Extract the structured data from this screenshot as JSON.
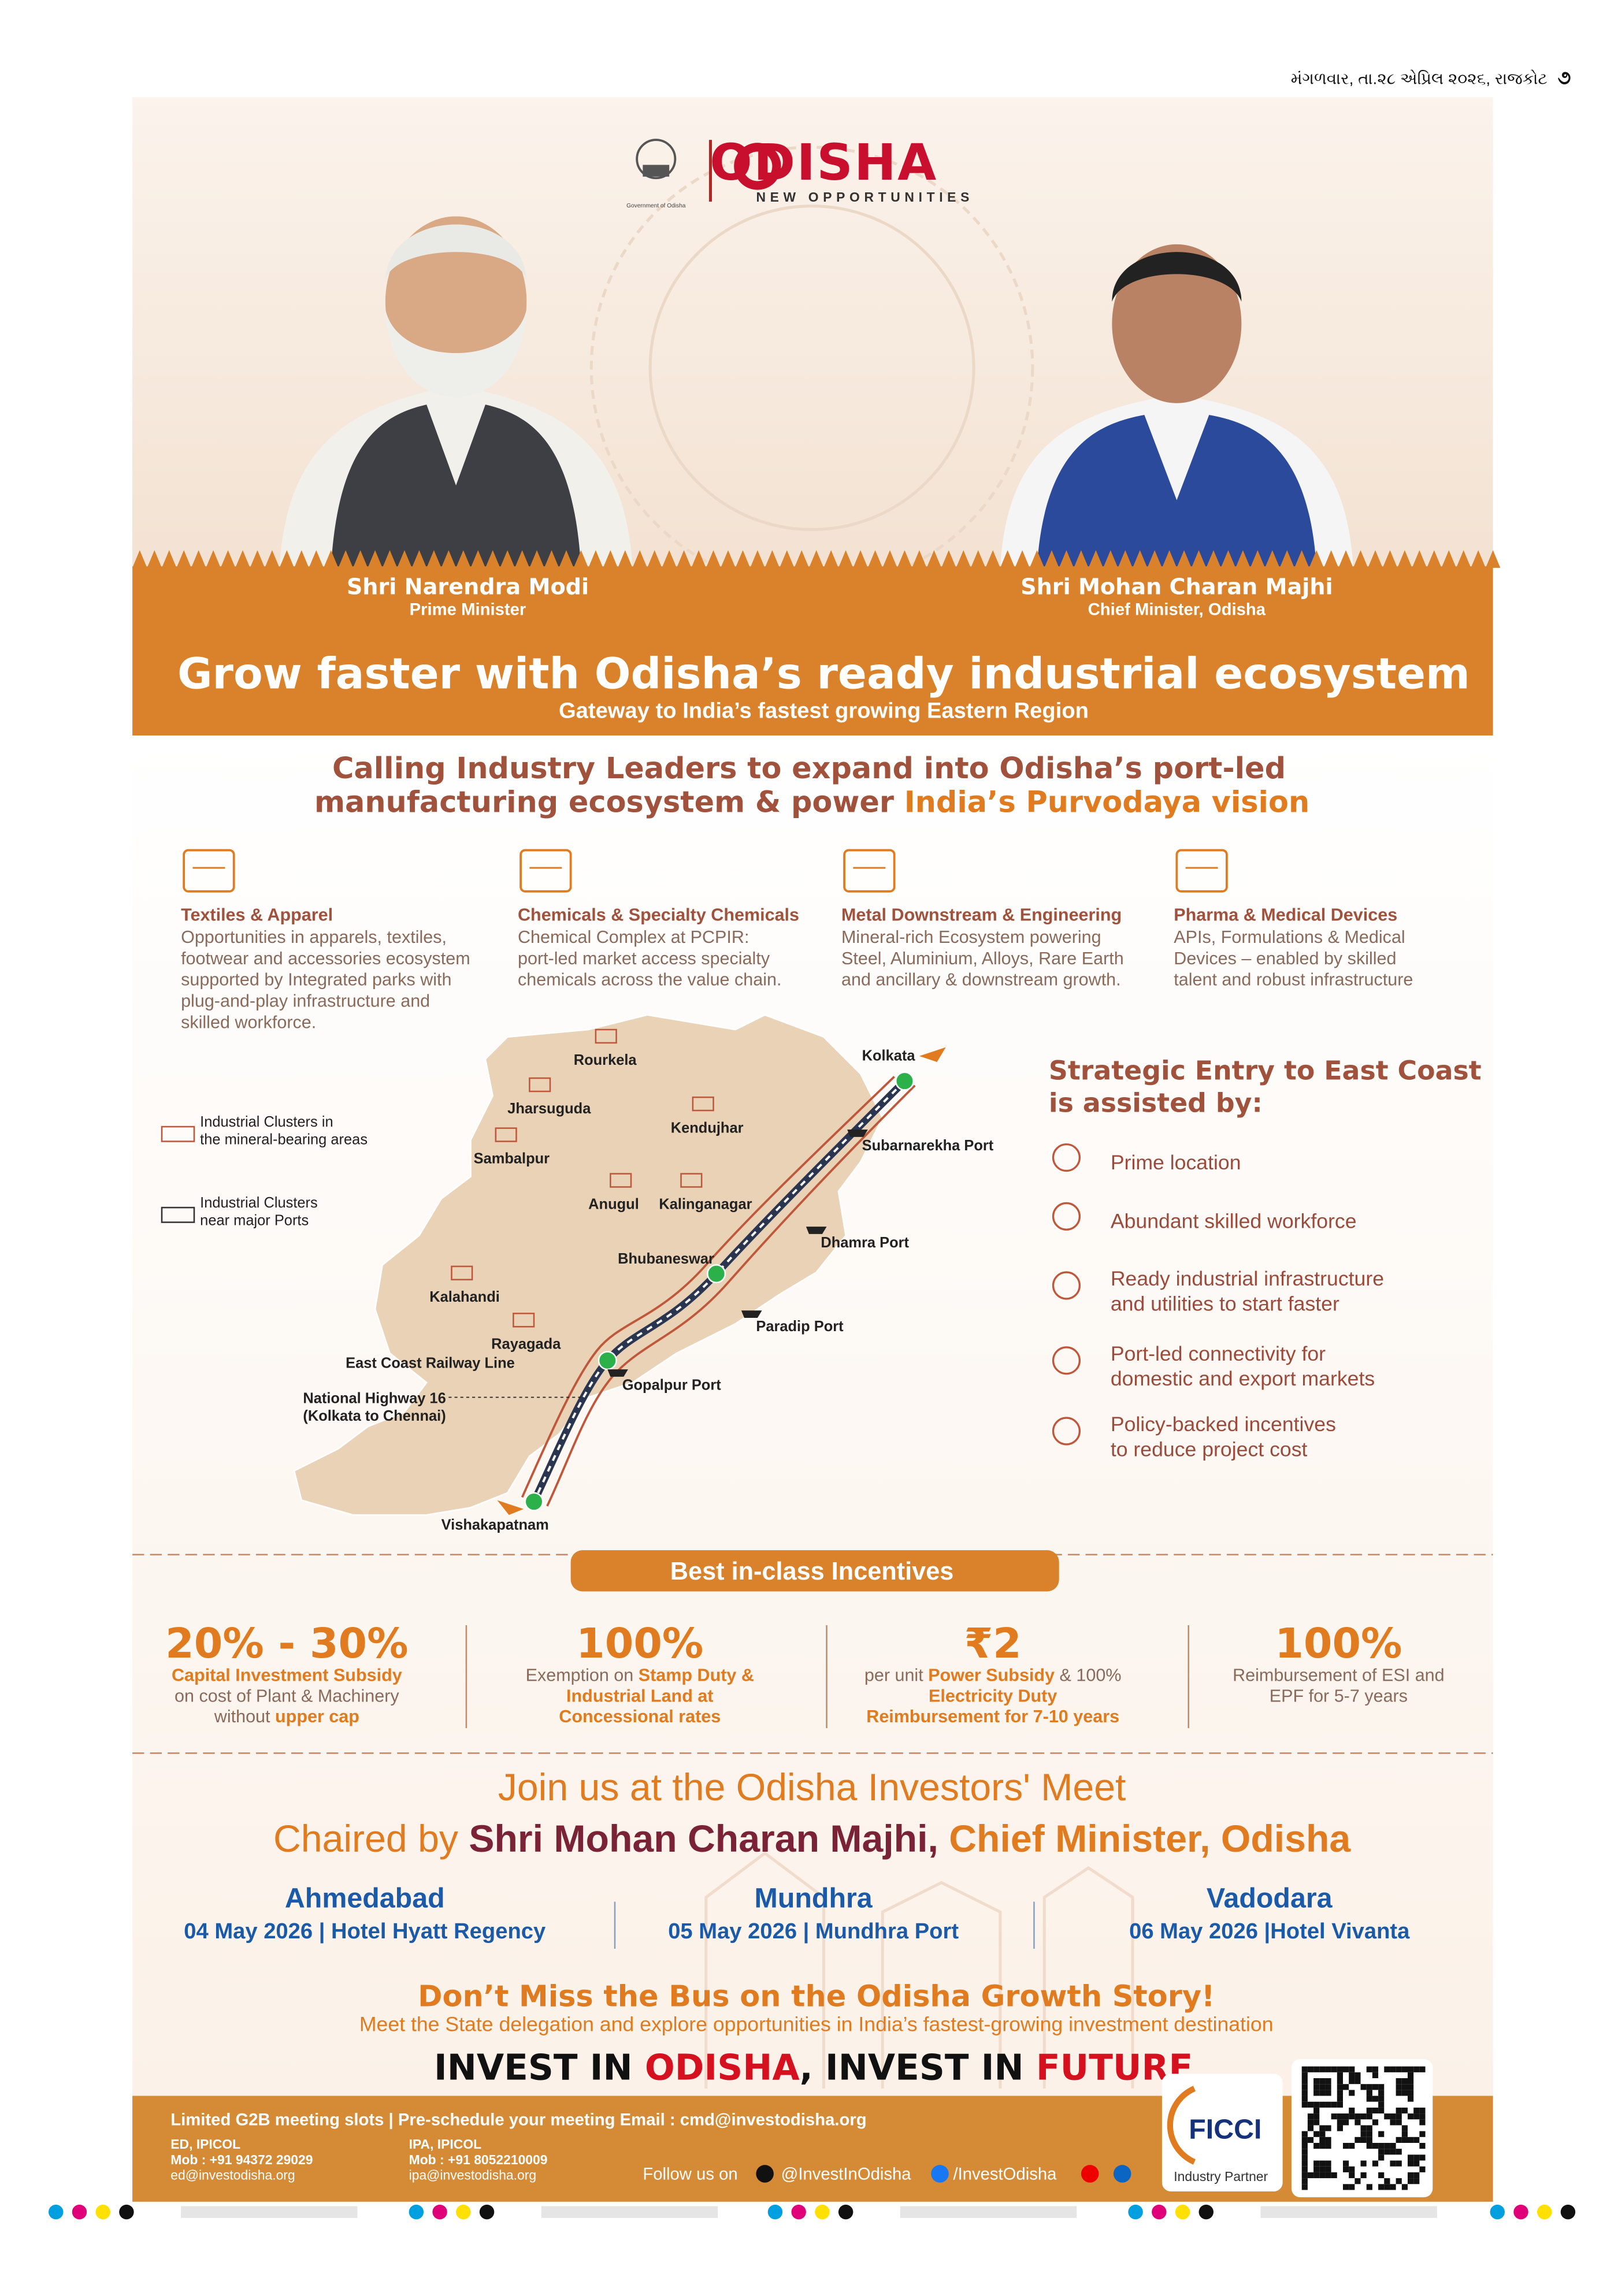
{
  "header": {
    "date": "મંગળવાર, તા.૨૮ એપ્રિલ ૨૦૨૬, રાજકોટ",
    "page": "૭"
  },
  "logo": {
    "brand": "ODISHA",
    "tagline": "NEW OPPORTUNITIES",
    "gov": "Government of Odisha"
  },
  "leaders": [
    {
      "name": "Shri Narendra Modi",
      "role": "Prime Minister"
    },
    {
      "name": "Shri Mohan Charan Majhi",
      "role": "Chief Minister, Odisha"
    }
  ],
  "banner": {
    "title": "Grow faster with Odisha’s ready industrial ecosystem",
    "subtitle": "Gateway to India’s fastest growing Eastern Region"
  },
  "calling": {
    "line1": "Calling Industry Leaders to expand into Odisha’s port-led",
    "line2": [
      "manufacturing ecosystem & power ",
      "India’s Purvodaya vision"
    ]
  },
  "sectors": [
    {
      "title": "Textiles & Apparel",
      "lines": [
        "Opportunities in apparels, textiles,",
        "footwear and accessories ecosystem",
        "supported by Integrated  parks with",
        "plug-and-play infrastructure and",
        "skilled workforce."
      ]
    },
    {
      "title": "Chemicals & Specialty Chemicals",
      "lines": [
        "Chemical Complex at PCPIR:",
        "port-led market access specialty",
        "chemicals across the value chain."
      ]
    },
    {
      "title": "Metal Downstream & Engineering",
      "lines": [
        "Mineral-rich Ecosystem powering",
        "Steel, Aluminium, Alloys, Rare Earth",
        "and ancillary & downstream growth."
      ]
    },
    {
      "title": "Pharma & Medical Devices",
      "lines": [
        "APIs, Formulations & Medical",
        "Devices – enabled by skilled",
        "talent and robust infrastructure"
      ]
    }
  ],
  "map": {
    "legend": [
      [
        "Industrial Clusters in",
        "the mineral-bearing areas"
      ],
      [
        "Industrial Clusters",
        "near major Ports"
      ]
    ],
    "places": [
      "Rourkela",
      "Jharsuguda",
      "Sambalpur",
      "Kendujhar",
      "Anugul",
      "Kalinganagar",
      "Bhubaneswar",
      "Kalahandi",
      "Rayagada",
      "Vishakapatnam",
      "Kolkata"
    ],
    "ports": [
      "Subarnarekha Port",
      "Dhamra Port",
      "Paradip Port",
      "Gopalpur Port"
    ],
    "railway": "East Coast Railway Line",
    "highway": [
      "National Highway 16",
      "(Kolkata to Chennai)"
    ]
  },
  "strategic": {
    "title": [
      "Strategic Entry to East Coast",
      "is assisted by:"
    ],
    "items": [
      [
        "Prime location"
      ],
      [
        "Abundant skilled workforce"
      ],
      [
        "Ready industrial infrastructure",
        "and utilities to start faster"
      ],
      [
        "Port-led connectivity for",
        "domestic and export markets"
      ],
      [
        "Policy-backed incentives",
        "to reduce project cost"
      ]
    ]
  },
  "incentives": {
    "heading": "Best in-class Incentives",
    "items": [
      {
        "big": "20% - 30%",
        "lines": [
          [
            "Capital Investment Subsidy"
          ],
          [
            "on cost of Plant & Machinery"
          ],
          [
            "without ",
            "upper cap"
          ]
        ]
      },
      {
        "big": "100%",
        "lines": [
          [
            "Exemption on  ",
            "Stamp Duty &"
          ],
          [
            "Industrial Land at"
          ],
          [
            "Concessional rates"
          ]
        ]
      },
      {
        "big": "₹2",
        "lines": [
          [
            "per unit ",
            "Power Subsidy",
            " & 100%"
          ],
          [
            "Electricity Duty"
          ],
          [
            "Reimbursement for 7-10 years"
          ]
        ]
      },
      {
        "big": "100%",
        "lines": [
          [
            "Reimbursement of ESI and"
          ],
          [
            "EPF for 5-7 years"
          ]
        ]
      }
    ]
  },
  "meet": {
    "line1": "Join us at the Odisha Investors' Meet",
    "line2": [
      "Chaired by ",
      "Shri Mohan Charan Majhi,",
      " Chief Minister, Odisha"
    ],
    "cities": [
      {
        "name": "Ahmedabad",
        "detail": "04 May 2026 | Hotel Hyatt Regency"
      },
      {
        "name": "Mundhra",
        "detail": "05 May 2026 | Mundhra Port"
      },
      {
        "name": "Vadodara",
        "detail": "06 May 2026 |Hotel Vivanta"
      }
    ]
  },
  "tagline": {
    "title": "Don’t Miss the Bus on the Odisha Growth Story!",
    "sub": "Meet  the State delegation and explore opportunities in India’s fastest-growing investment destination"
  },
  "invest": [
    "INVEST IN ",
    "ODISHA",
    ", INVEST IN ",
    "FUTURE"
  ],
  "footer": {
    "slots": "Limited G2B meeting slots | Pre-schedule your meeting Email : cmd@investodisha.org",
    "contacts": [
      [
        "ED, IPICOL",
        "Mob : +91 94372 29029",
        "ed@investodisha.org"
      ],
      [
        "IPA, IPICOL",
        "Mob : +91 8052210009",
        "ipa@investodisha.org"
      ]
    ],
    "follow": "Follow us on",
    "x": "@InvestInOdisha",
    "fb": "/InvestOdisha",
    "partner": "FICCI",
    "partner_role": "Industry Partner"
  }
}
